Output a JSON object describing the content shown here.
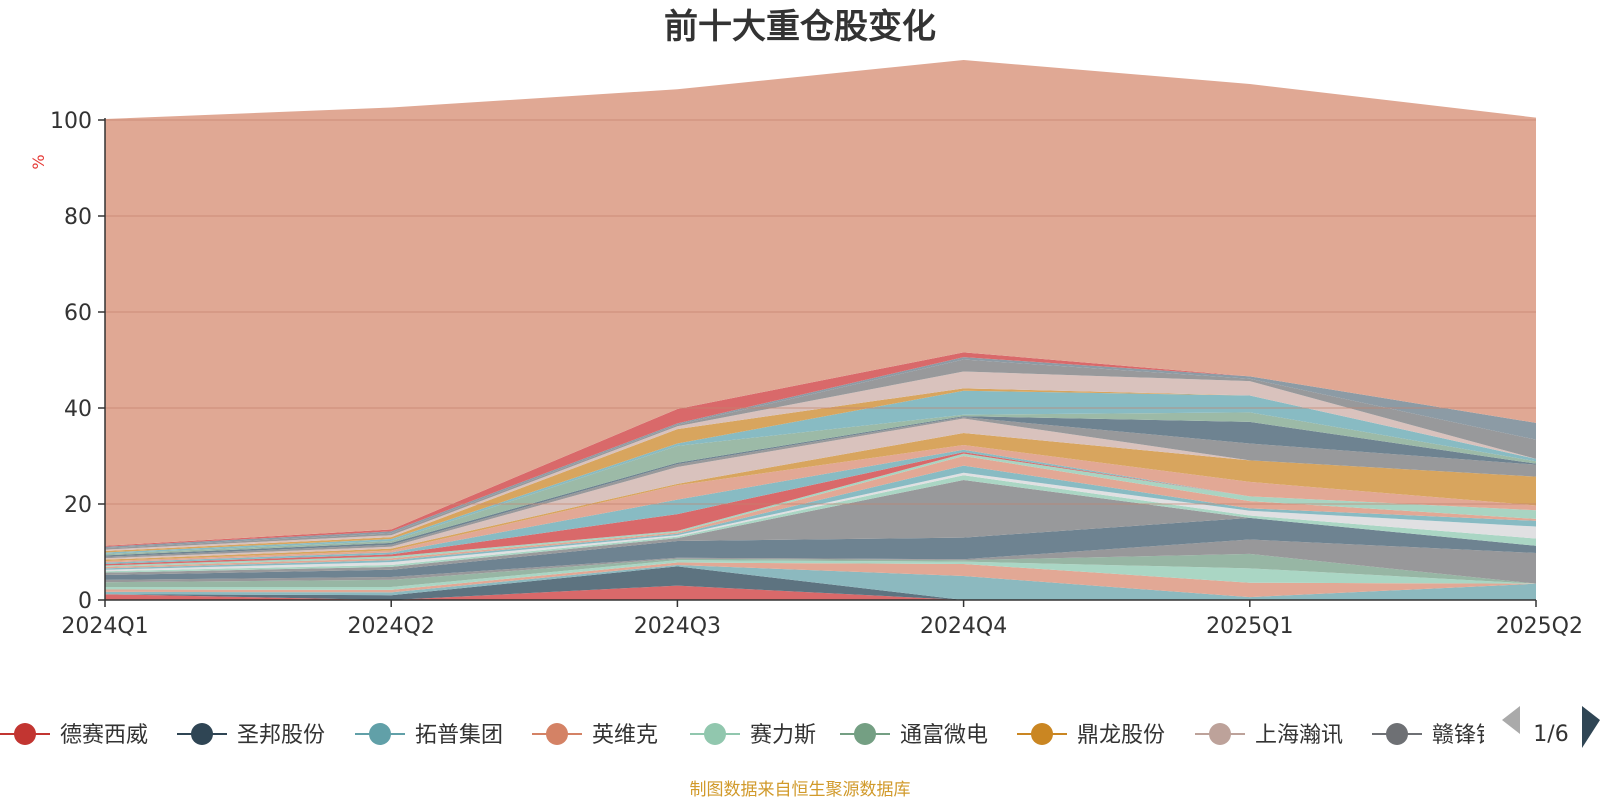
{
  "chart_data": {
    "type": "area",
    "title": "前十大重仓股变化",
    "ylabel": "%",
    "ylim": [
      0,
      100
    ],
    "yticks": [
      0,
      20,
      40,
      60,
      80,
      100
    ],
    "x": [
      "2024Q1",
      "2024Q2",
      "2024Q3",
      "2024Q4",
      "2025Q1",
      "2025Q2"
    ],
    "grid": true,
    "legend": {
      "position": "bottom",
      "items": [
        {
          "name": "德赛西威",
          "color": "#c23531"
        },
        {
          "name": "圣邦股份",
          "color": "#2f4554"
        },
        {
          "name": "拓普集团",
          "color": "#61a0a8"
        },
        {
          "name": "英维克",
          "color": "#d48265"
        },
        {
          "name": "赛力斯",
          "color": "#91c7ae"
        },
        {
          "name": "通富微电",
          "color": "#749f83"
        },
        {
          "name": "鼎龙股份",
          "color": "#ca8622"
        },
        {
          "name": "上海瀚讯",
          "color": "#bda29a"
        },
        {
          "name": "赣锋锂业",
          "color": "#6e7074"
        }
      ],
      "page": "1/6"
    },
    "series": [
      {
        "color": "#d9696a",
        "values": [
          1.2,
          0.0,
          3.0,
          0.0,
          0.0,
          0.0
        ]
      },
      {
        "color": "#5d7380",
        "values": [
          0.0,
          1.0,
          4.0,
          0.0,
          0.0,
          0.0
        ]
      },
      {
        "color": "#8cb9bf",
        "values": [
          0.5,
          0.6,
          0.3,
          5.0,
          0.6,
          3.4
        ]
      },
      {
        "color": "#e2a895",
        "values": [
          0.5,
          0.5,
          0.5,
          2.5,
          3.0,
          0.0
        ]
      },
      {
        "color": "#aad6c4",
        "values": [
          0.5,
          0.6,
          0.5,
          0.5,
          3.0,
          0.0
        ]
      },
      {
        "color": "#97b6a4",
        "values": [
          1.0,
          1.5,
          0.3,
          0.3,
          3.0,
          0.0
        ]
      },
      {
        "color": "#98989a",
        "values": [
          0.5,
          0.6,
          0.2,
          0.2,
          3.0,
          6.4
        ]
      },
      {
        "color": "#6e8391",
        "values": [
          1.0,
          1.5,
          3.5,
          4.5,
          4.5,
          1.5
        ]
      },
      {
        "color": "#98999b",
        "values": [
          0.5,
          0.6,
          0.6,
          12.0,
          0.0,
          0.0
        ]
      },
      {
        "color": "#aad6c4",
        "values": [
          0.3,
          0.4,
          0.3,
          1.0,
          0.5,
          1.5
        ]
      },
      {
        "color": "#e0e0e2",
        "values": [
          0.3,
          0.6,
          0.3,
          0.5,
          1.0,
          2.5
        ]
      },
      {
        "color": "#88bbc3",
        "values": [
          0.3,
          0.4,
          0.3,
          1.5,
          0.5,
          1.2
        ]
      },
      {
        "color": "#e2a895",
        "values": [
          0.3,
          0.4,
          0.3,
          2.0,
          1.5,
          0.4
        ]
      },
      {
        "color": "#a9d4c2",
        "values": [
          0.3,
          0.4,
          0.3,
          0.5,
          1.0,
          1.8
        ]
      },
      {
        "color": "#d9696a",
        "values": [
          0.3,
          0.4,
          3.5,
          0.3,
          0.0,
          0.0
        ]
      },
      {
        "color": "#88bbc3",
        "values": [
          0.3,
          0.4,
          3.0,
          0.5,
          0.0,
          0.0
        ]
      },
      {
        "color": "#e2a895",
        "values": [
          0.3,
          0.4,
          3.0,
          1.0,
          3.0,
          1.0
        ]
      },
      {
        "color": "#d8a55e",
        "values": [
          0.3,
          0.4,
          0.3,
          2.5,
          4.5,
          6.0
        ]
      },
      {
        "color": "#d9c2bd",
        "values": [
          0.3,
          0.4,
          3.5,
          3.0,
          0.0,
          0.0
        ]
      },
      {
        "color": "#98999b",
        "values": [
          0.3,
          0.4,
          0.6,
          0.3,
          3.5,
          2.5
        ]
      },
      {
        "color": "#6e8391",
        "values": [
          0.3,
          0.4,
          0.3,
          0.2,
          4.5,
          0.2
        ]
      },
      {
        "color": "#9cbaa7",
        "values": [
          0.3,
          0.4,
          3.5,
          0.3,
          2.0,
          0.5
        ]
      },
      {
        "color": "#88bbc3",
        "values": [
          0.3,
          0.4,
          0.5,
          5.0,
          3.5,
          0.5
        ]
      },
      {
        "color": "#d8a55e",
        "values": [
          0.3,
          0.4,
          3.0,
          0.5,
          0.0,
          0.0
        ]
      },
      {
        "color": "#d9c2bd",
        "values": [
          0.3,
          0.4,
          0.6,
          3.5,
          3.0,
          0.0
        ]
      },
      {
        "color": "#98999b",
        "values": [
          0.3,
          0.4,
          0.3,
          2.5,
          0.5,
          4.0
        ]
      },
      {
        "color": "#8c9ba5",
        "values": [
          0.3,
          0.4,
          0.3,
          0.5,
          0.5,
          3.5
        ]
      },
      {
        "color": "#d9696a",
        "values": [
          0.2,
          0.4,
          3.0,
          1.0,
          0.0,
          0.0
        ]
      },
      {
        "color": "#e0a894",
        "values": [
          88.9,
          87.9,
          66.6,
          60.9,
          60.9,
          63.6
        ]
      }
    ]
  },
  "footer": {
    "source": "制图数据来自恒生聚源数据库"
  }
}
